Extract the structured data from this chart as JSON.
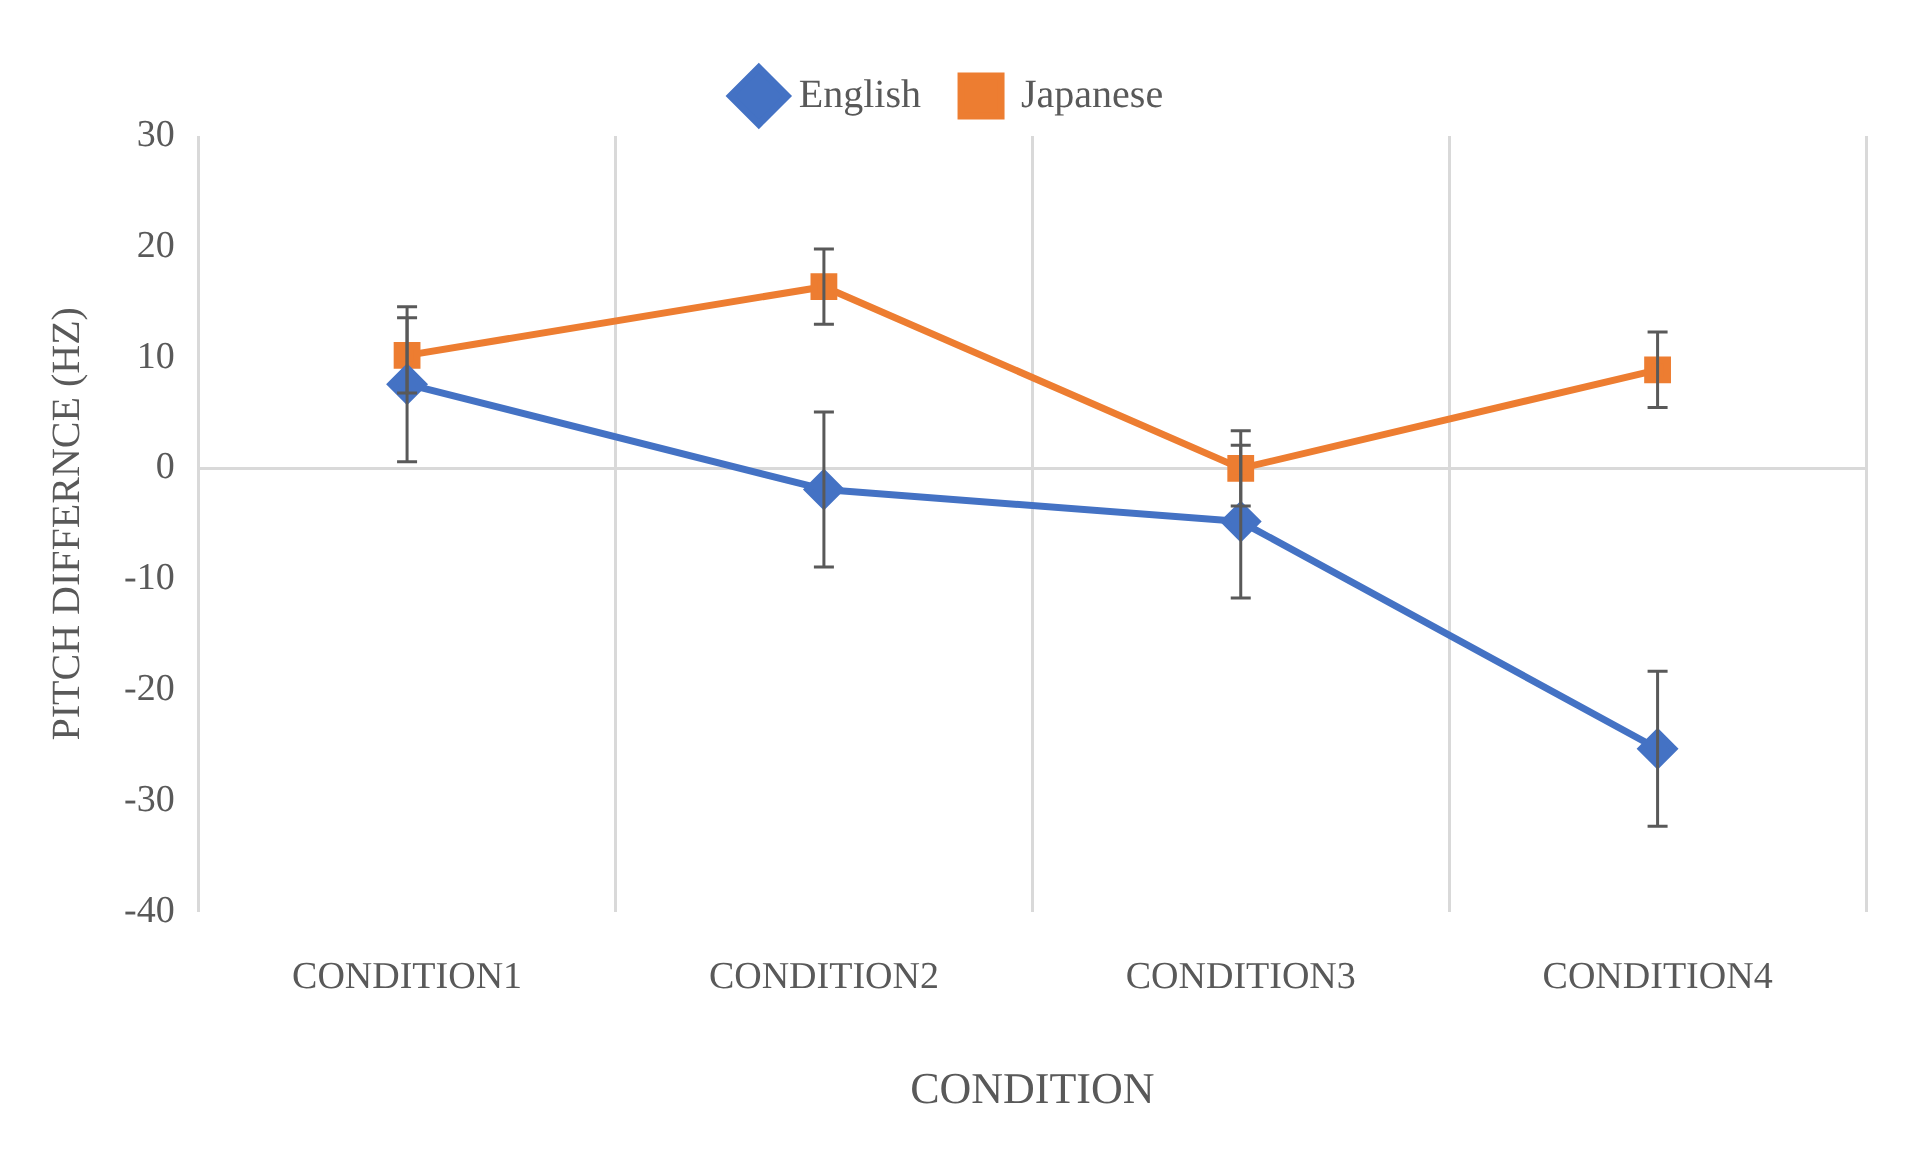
{
  "chart_data": {
    "type": "line",
    "xlabel": "CONDITION",
    "ylabel": "PITCH DIFFERNCE (HZ)",
    "categories": [
      "CONDITION1",
      "CONDITION2",
      "CONDITION3",
      "CONDITION4"
    ],
    "series": [
      {
        "name": "English",
        "color": "#4472c4",
        "marker": "diamond",
        "values": [
          7.6,
          -1.9,
          -4.8,
          -25.3
        ],
        "errors": [
          7,
          7,
          6.9,
          7
        ]
      },
      {
        "name": "Japanese",
        "color": "#ed7d31",
        "marker": "square",
        "values": [
          10.2,
          16.4,
          0,
          8.9
        ],
        "errors": [
          3.4,
          3.4,
          3.4,
          3.4
        ]
      }
    ],
    "ylim": [
      -40,
      30
    ],
    "yticks": [
      -40,
      -30,
      -20,
      -10,
      0,
      10,
      20,
      30
    ],
    "grid": "x",
    "ref_lines": [
      {
        "axis": "y",
        "value": 0,
        "color": "#d9d9d9"
      }
    ],
    "legend": "top",
    "line_style": "solid"
  }
}
